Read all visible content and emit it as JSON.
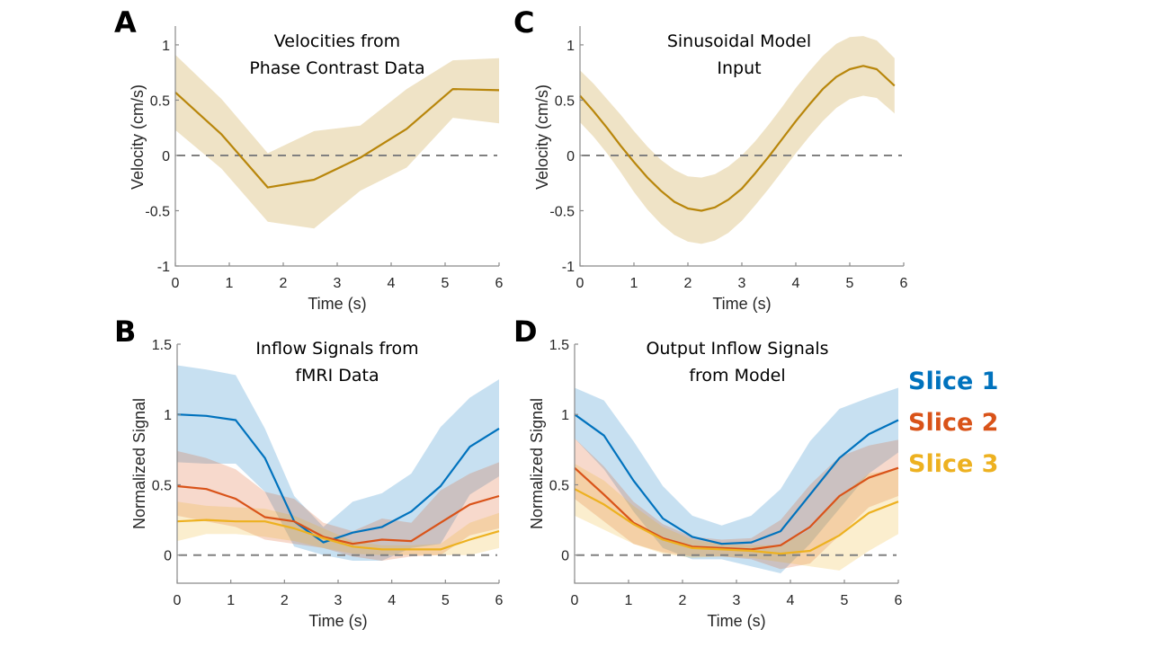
{
  "colors": {
    "velocity_line": "#B8860B",
    "velocity_band": "#EFE3C6",
    "slice1": "#0072BD",
    "slice2": "#D95319",
    "slice3": "#EDB120"
  },
  "legend": [
    {
      "label": "Slice 1",
      "color_key": "slice1"
    },
    {
      "label": "Slice 2",
      "color_key": "slice2"
    },
    {
      "label": "Slice 3",
      "color_key": "slice3"
    }
  ],
  "chart_data": [
    {
      "id": "A",
      "type": "line",
      "panel_letter": "A",
      "title": [
        "Velocities from",
        "Phase Contrast Data"
      ],
      "xlabel": "Time (s)",
      "ylabel": "Velocity (cm/s)",
      "xlim": [
        0,
        6
      ],
      "ylim": [
        -1,
        1.17
      ],
      "xticks": [
        "0",
        "1",
        "2",
        "3",
        "4",
        "5",
        "6"
      ],
      "xtick_values": [
        0,
        1,
        2,
        3,
        4,
        5,
        6
      ],
      "yticks": [
        "-1",
        "-0.5",
        "0",
        "0.5",
        "1"
      ],
      "ytick_values": [
        -1,
        -0.5,
        0,
        0.5,
        1
      ],
      "reference_line": 0,
      "x": [
        0,
        0.857,
        1.714,
        2.571,
        3.429,
        4.286,
        5.143,
        6.0
      ],
      "series": [
        {
          "name": "Velocity",
          "color_key": "velocity_line",
          "band_color_key": "velocity_band",
          "mean": [
            0.57,
            0.19,
            -0.29,
            -0.22,
            -0.02,
            0.24,
            0.6,
            0.59
          ],
          "upper": [
            0.91,
            0.51,
            0.02,
            0.22,
            0.27,
            0.6,
            0.86,
            0.88
          ],
          "lower": [
            0.23,
            -0.12,
            -0.6,
            -0.66,
            -0.32,
            -0.11,
            0.34,
            0.29
          ]
        }
      ]
    },
    {
      "id": "C",
      "type": "line",
      "panel_letter": "C",
      "title": [
        "Sinusoidal Model",
        "Input"
      ],
      "xlabel": "Time (s)",
      "ylabel": "Velocity (cm/s)",
      "xlim": [
        0,
        6
      ],
      "ylim": [
        -1,
        1.17
      ],
      "xticks": [
        "0",
        "1",
        "2",
        "3",
        "4",
        "5",
        "6"
      ],
      "xtick_values": [
        0,
        1,
        2,
        3,
        4,
        5,
        6
      ],
      "yticks": [
        "-1",
        "-0.5",
        "0",
        "0.5",
        "1"
      ],
      "ytick_values": [
        -1,
        -0.5,
        0,
        0.5,
        1
      ],
      "reference_line": 0,
      "x": [
        0,
        0.25,
        0.5,
        0.75,
        1.0,
        1.25,
        1.5,
        1.75,
        2.0,
        2.25,
        2.5,
        2.75,
        3.0,
        3.25,
        3.5,
        3.75,
        4.0,
        4.25,
        4.5,
        4.75,
        5.0,
        5.25,
        5.5,
        5.83
      ],
      "series": [
        {
          "name": "Velocity",
          "color_key": "velocity_line",
          "band_color_key": "velocity_band",
          "mean": [
            0.54,
            0.4,
            0.25,
            0.09,
            -0.06,
            -0.2,
            -0.32,
            -0.42,
            -0.48,
            -0.5,
            -0.47,
            -0.4,
            -0.3,
            -0.16,
            -0.01,
            0.15,
            0.31,
            0.46,
            0.6,
            0.71,
            0.78,
            0.81,
            0.78,
            0.63
          ],
          "upper": [
            0.77,
            0.65,
            0.51,
            0.37,
            0.22,
            0.08,
            -0.04,
            -0.13,
            -0.19,
            -0.2,
            -0.17,
            -0.1,
            0.0,
            0.13,
            0.28,
            0.44,
            0.61,
            0.76,
            0.9,
            1.01,
            1.07,
            1.08,
            1.04,
            0.88
          ],
          "lower": [
            0.3,
            0.17,
            0.02,
            -0.15,
            -0.33,
            -0.49,
            -0.62,
            -0.72,
            -0.78,
            -0.8,
            -0.77,
            -0.7,
            -0.59,
            -0.45,
            -0.3,
            -0.14,
            0.02,
            0.17,
            0.31,
            0.43,
            0.51,
            0.54,
            0.52,
            0.38
          ]
        }
      ]
    },
    {
      "id": "B",
      "type": "line",
      "panel_letter": "B",
      "title": [
        "Inflow Signals from",
        "fMRI Data"
      ],
      "xlabel": "Time (s)",
      "ylabel": "Normalized Signal",
      "xlim": [
        0,
        6
      ],
      "ylim": [
        -0.2,
        1.5
      ],
      "xticks": [
        "0",
        "1",
        "2",
        "3",
        "4",
        "5",
        "6"
      ],
      "xtick_values": [
        0,
        1,
        2,
        3,
        4,
        5,
        6
      ],
      "yticks": [
        "0",
        "0.5",
        "1",
        "1.5"
      ],
      "ytick_values": [
        0,
        0.5,
        1,
        1.5
      ],
      "reference_line": 0,
      "x": [
        0,
        0.545,
        1.091,
        1.636,
        2.182,
        2.727,
        3.273,
        3.818,
        4.364,
        4.909,
        5.455,
        6.0
      ],
      "series": [
        {
          "name": "Slice 1",
          "color_key": "slice1",
          "mean": [
            1.0,
            0.99,
            0.96,
            0.69,
            0.24,
            0.09,
            0.16,
            0.2,
            0.31,
            0.49,
            0.77,
            0.9
          ],
          "upper": [
            1.35,
            1.32,
            1.28,
            0.9,
            0.42,
            0.2,
            0.38,
            0.44,
            0.58,
            0.91,
            1.12,
            1.25
          ],
          "lower": [
            0.66,
            0.65,
            0.65,
            0.45,
            0.06,
            0.0,
            -0.04,
            -0.04,
            0.05,
            0.08,
            0.43,
            0.56
          ]
        },
        {
          "name": "Slice 2",
          "color_key": "slice2",
          "mean": [
            0.49,
            0.47,
            0.4,
            0.27,
            0.24,
            0.13,
            0.08,
            0.11,
            0.1,
            0.23,
            0.36,
            0.42
          ],
          "upper": [
            0.74,
            0.69,
            0.61,
            0.45,
            0.4,
            0.23,
            0.17,
            0.26,
            0.23,
            0.46,
            0.58,
            0.66
          ],
          "lower": [
            0.28,
            0.24,
            0.2,
            0.11,
            0.08,
            0.05,
            -0.01,
            -0.04,
            -0.01,
            0.0,
            0.14,
            0.19
          ]
        },
        {
          "name": "Slice 3",
          "color_key": "slice3",
          "mean": [
            0.24,
            0.25,
            0.24,
            0.24,
            0.19,
            0.12,
            0.06,
            0.04,
            0.04,
            0.04,
            0.11,
            0.17
          ],
          "upper": [
            0.38,
            0.35,
            0.34,
            0.33,
            0.28,
            0.19,
            0.1,
            0.07,
            0.07,
            0.08,
            0.23,
            0.3
          ],
          "lower": [
            0.1,
            0.15,
            0.15,
            0.13,
            0.1,
            0.05,
            0.01,
            0.0,
            0.0,
            0.0,
            0.0,
            0.05
          ]
        }
      ]
    },
    {
      "id": "D",
      "type": "line",
      "panel_letter": "D",
      "title": [
        "Output Inflow Signals",
        "from Model"
      ],
      "xlabel": "Time (s)",
      "ylabel": "Normalized Signal",
      "xlim": [
        0,
        6
      ],
      "ylim": [
        -0.2,
        1.5
      ],
      "xticks": [
        "0",
        "1",
        "2",
        "3",
        "4",
        "5",
        "6"
      ],
      "xtick_values": [
        0,
        1,
        2,
        3,
        4,
        5,
        6
      ],
      "yticks": [
        "0",
        "0.5",
        "1",
        "1.5"
      ],
      "ytick_values": [
        0,
        0.5,
        1,
        1.5
      ],
      "reference_line": 0,
      "legend_position": "right",
      "x": [
        0,
        0.545,
        1.091,
        1.636,
        2.182,
        2.727,
        3.273,
        3.818,
        4.364,
        4.909,
        5.455,
        6.0
      ],
      "series": [
        {
          "name": "Slice 1",
          "color_key": "slice1",
          "mean": [
            1.0,
            0.85,
            0.53,
            0.26,
            0.13,
            0.08,
            0.09,
            0.17,
            0.43,
            0.69,
            0.86,
            0.96
          ],
          "upper": [
            1.19,
            1.1,
            0.81,
            0.49,
            0.28,
            0.21,
            0.28,
            0.47,
            0.81,
            1.04,
            1.12,
            1.19
          ],
          "lower": [
            0.83,
            0.61,
            0.31,
            0.05,
            -0.03,
            -0.03,
            -0.08,
            -0.13,
            0.08,
            0.33,
            0.58,
            0.73
          ]
        },
        {
          "name": "Slice 2",
          "color_key": "slice2",
          "mean": [
            0.62,
            0.43,
            0.23,
            0.12,
            0.06,
            0.05,
            0.04,
            0.07,
            0.2,
            0.42,
            0.55,
            0.62
          ],
          "upper": [
            0.83,
            0.63,
            0.38,
            0.22,
            0.13,
            0.11,
            0.12,
            0.25,
            0.5,
            0.7,
            0.78,
            0.82
          ],
          "lower": [
            0.4,
            0.24,
            0.08,
            0.02,
            -0.01,
            -0.01,
            -0.03,
            -0.1,
            -0.06,
            0.14,
            0.34,
            0.42
          ]
        },
        {
          "name": "Slice 3",
          "color_key": "slice3",
          "mean": [
            0.47,
            0.36,
            0.22,
            0.11,
            0.05,
            0.04,
            0.03,
            0.01,
            0.03,
            0.14,
            0.3,
            0.38
          ],
          "upper": [
            0.65,
            0.53,
            0.35,
            0.2,
            0.11,
            0.08,
            0.07,
            0.07,
            0.18,
            0.42,
            0.58,
            0.61
          ],
          "lower": [
            0.28,
            0.18,
            0.08,
            0.01,
            -0.02,
            -0.01,
            -0.02,
            -0.05,
            -0.08,
            -0.11,
            0.03,
            0.15
          ]
        }
      ]
    }
  ]
}
